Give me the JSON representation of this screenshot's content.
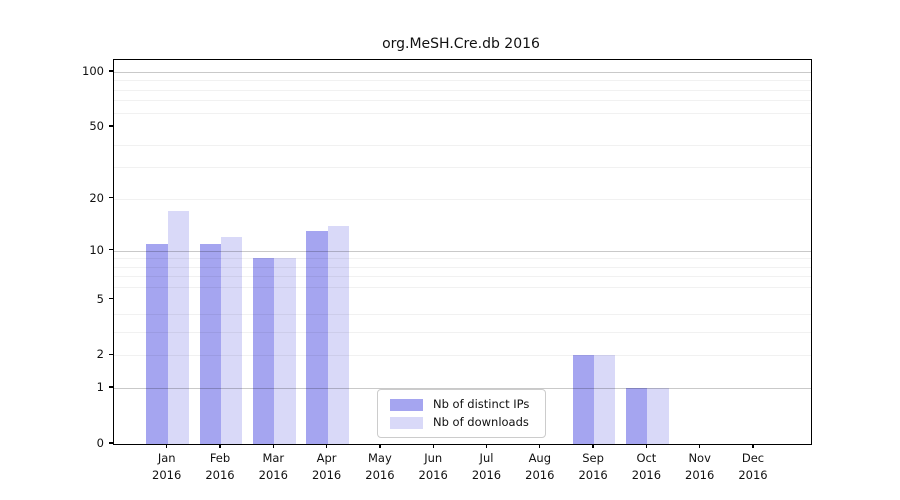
{
  "chart_data": {
    "type": "bar",
    "title": "org.MeSH.Cre.db 2016",
    "year_label": "2016",
    "months": [
      "Jan",
      "Feb",
      "Mar",
      "Apr",
      "May",
      "Jun",
      "Jul",
      "Aug",
      "Sep",
      "Oct",
      "Nov",
      "Dec"
    ],
    "series": [
      {
        "name": "Nb of distinct IPs",
        "color": "#a5a5f0",
        "values": [
          11,
          11,
          9,
          13,
          0,
          0,
          0,
          0,
          2,
          1,
          0,
          0
        ]
      },
      {
        "name": "Nb of downloads",
        "color": "#d9d9f8",
        "values": [
          17,
          12,
          9,
          14,
          0,
          0,
          0,
          0,
          2,
          1,
          0,
          0
        ]
      }
    ],
    "yscale": "log1p",
    "ytick_values": [
      0,
      1,
      2,
      5,
      10,
      20,
      50,
      100
    ],
    "ytick_labels": [
      "0",
      "1",
      "2",
      "5",
      "10",
      "20",
      "50",
      "100"
    ],
    "major_gridlines": [
      1,
      10,
      100
    ],
    "minor_gridlines": [
      2,
      3,
      4,
      6,
      7,
      8,
      9,
      20,
      30,
      40,
      60,
      70,
      80,
      90
    ],
    "ylim_top": 116,
    "grid": "on",
    "legend_position": "bottom-center-inside",
    "colors": {
      "axis": "#000000",
      "text": "#111111"
    }
  }
}
